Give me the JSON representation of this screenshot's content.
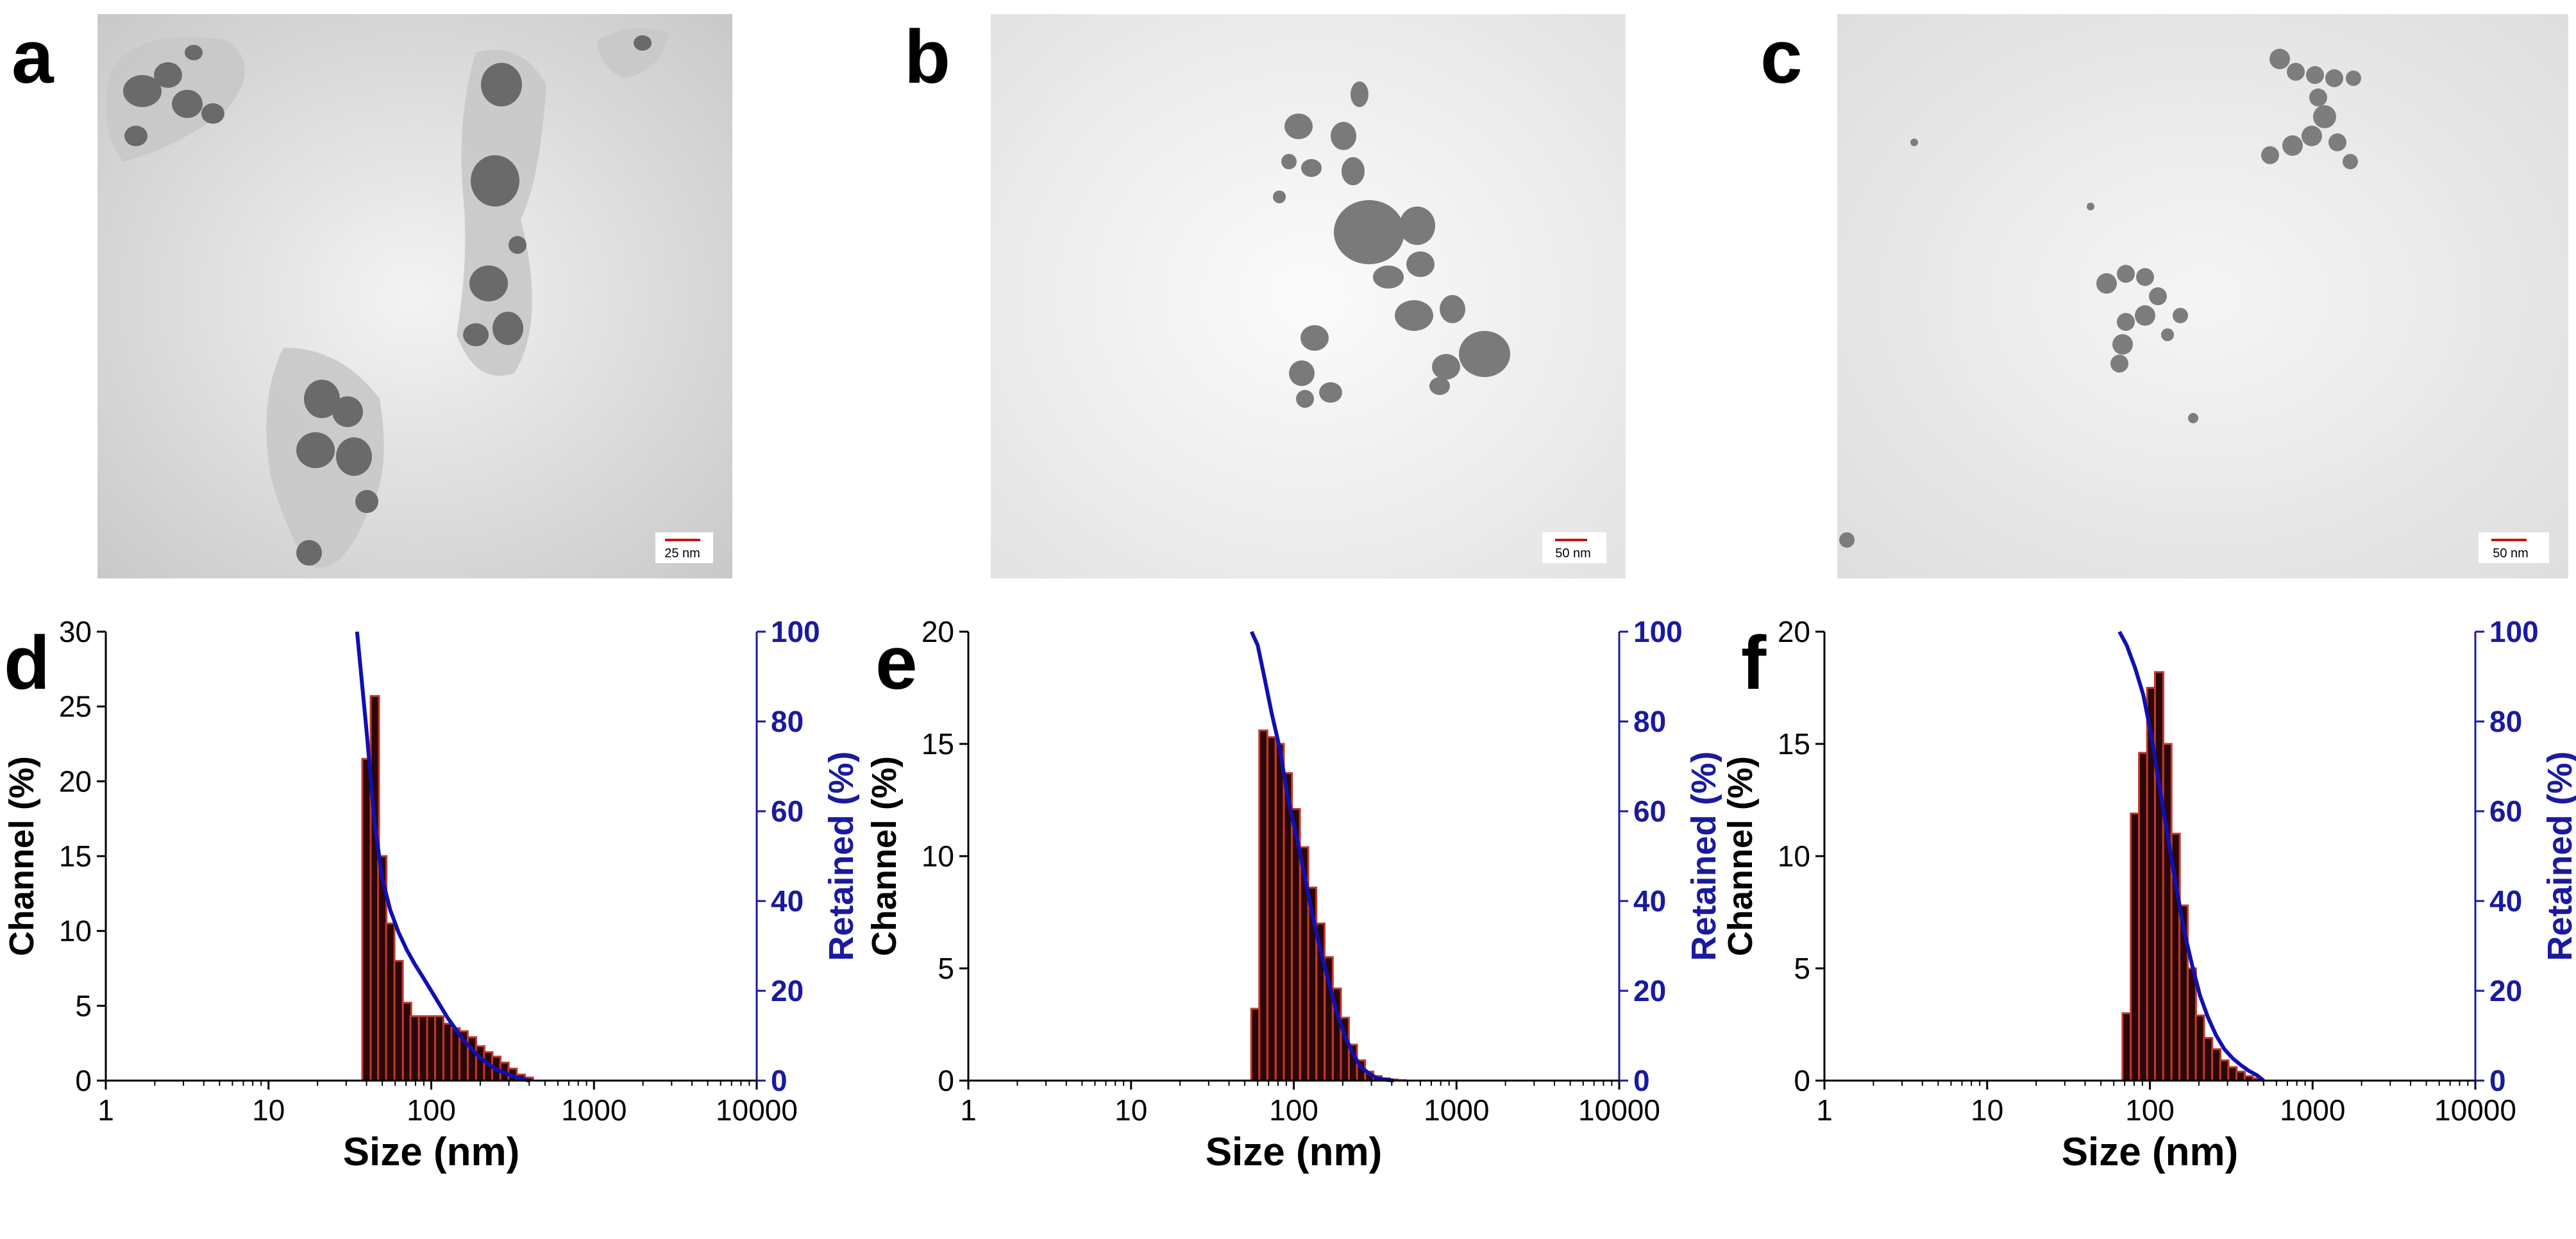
{
  "panels": {
    "a": {
      "letter": "a",
      "scale_bar": "25 nm"
    },
    "b": {
      "letter": "b",
      "scale_bar": "50 nm"
    },
    "c": {
      "letter": "c",
      "scale_bar": "50 nm"
    },
    "d": {
      "letter": "d"
    },
    "e": {
      "letter": "e"
    },
    "f": {
      "letter": "f"
    }
  },
  "colors": {
    "bar_fill": "#2a0606",
    "bar_edge": "#c0392b",
    "retained_line": "#1010b0",
    "right_axis": "#1a1aa0",
    "scale_bar": "#d01010"
  },
  "chart_data": [
    {
      "type": "bar",
      "panel": "d",
      "x_scale": "log",
      "xlabel": "Size (nm)",
      "ylabel": "Channel (%)",
      "y2label": "Retained (%)",
      "xlim": [
        1,
        10000
      ],
      "ylim": [
        0,
        30
      ],
      "y2lim": [
        0,
        100
      ],
      "x_ticks": [
        "1",
        "10",
        "100",
        "1000",
        "10000"
      ],
      "y_ticks": [
        "0",
        "5",
        "10",
        "15",
        "20",
        "25",
        "30"
      ],
      "y2_ticks": [
        "0",
        "20",
        "40",
        "60",
        "80",
        "100"
      ],
      "channel": {
        "x": [
          40,
          45,
          50,
          56,
          63,
          71,
          79,
          89,
          100,
          112,
          126,
          141,
          158,
          178,
          200,
          224,
          251,
          282,
          316,
          355,
          398
        ],
        "y": [
          21.5,
          25.7,
          15.0,
          10.5,
          8.0,
          5.2,
          4.3,
          4.3,
          4.3,
          4.3,
          3.8,
          3.5,
          3.3,
          2.9,
          2.3,
          1.9,
          1.6,
          1.2,
          0.8,
          0.4,
          0.2
        ]
      },
      "retained": {
        "x": [
          35,
          40,
          45,
          50,
          56,
          63,
          71,
          79,
          89,
          100,
          126,
          158,
          200,
          251,
          316,
          398
        ],
        "y": [
          100,
          78,
          57,
          45,
          38,
          33,
          29,
          26,
          23,
          20,
          14,
          9,
          5,
          2.5,
          1,
          0
        ]
      }
    },
    {
      "type": "bar",
      "panel": "e",
      "x_scale": "log",
      "xlabel": "Size (nm)",
      "ylabel": "Channel (%)",
      "y2label": "Retained (%)",
      "xlim": [
        1,
        10000
      ],
      "ylim": [
        0,
        20
      ],
      "y2lim": [
        0,
        100
      ],
      "x_ticks": [
        "1",
        "10",
        "100",
        "1000",
        "10000"
      ],
      "y_ticks": [
        "0",
        "5",
        "10",
        "15",
        "20"
      ],
      "y2_ticks": [
        "0",
        "20",
        "40",
        "60",
        "80",
        "100"
      ],
      "channel": {
        "x": [
          58,
          65,
          73,
          82,
          92,
          103,
          116,
          130,
          146,
          164,
          184,
          206,
          231,
          259,
          291,
          327,
          367,
          411,
          461
        ],
        "y": [
          3.2,
          15.6,
          15.3,
          15.0,
          13.7,
          12.1,
          10.4,
          8.6,
          7.0,
          5.5,
          4.1,
          2.8,
          1.6,
          0.9,
          0.4,
          0.2,
          0.1,
          0.05,
          0.02
        ]
      },
      "retained": {
        "x": [
          55,
          60,
          65,
          73,
          82,
          92,
          103,
          116,
          130,
          146,
          164,
          184,
          206,
          231,
          259,
          291,
          327,
          367,
          411
        ],
        "y": [
          100,
          97,
          91,
          82,
          74,
          63,
          55,
          46,
          37,
          29,
          22,
          15,
          10,
          6,
          3,
          1.5,
          0.5,
          0.2,
          0
        ]
      }
    },
    {
      "type": "bar",
      "panel": "f",
      "x_scale": "log",
      "xlabel": "Size (nm)",
      "ylabel": "Channel (%)",
      "y2label": "Retained (%)",
      "xlim": [
        1,
        10000
      ],
      "ylim": [
        0,
        20
      ],
      "y2lim": [
        0,
        100
      ],
      "x_ticks": [
        "1",
        "10",
        "100",
        "1000",
        "10000"
      ],
      "y_ticks": [
        "0",
        "5",
        "10",
        "15",
        "20"
      ],
      "y2_ticks": [
        "0",
        "20",
        "40",
        "60",
        "80",
        "100"
      ],
      "channel": {
        "x": [
          72,
          81,
          91,
          102,
          114,
          128,
          144,
          161,
          181,
          203,
          228,
          256,
          287,
          322,
          361,
          405,
          455
        ],
        "y": [
          3.0,
          11.9,
          14.6,
          17.5,
          18.2,
          15.0,
          11.0,
          7.8,
          5.0,
          2.9,
          1.9,
          1.4,
          0.9,
          0.6,
          0.4,
          0.2,
          0.1
        ]
      },
      "retained": {
        "x": [
          65,
          72,
          81,
          91,
          102,
          114,
          128,
          144,
          161,
          181,
          203,
          228,
          256,
          287,
          322,
          361,
          405,
          455,
          500
        ],
        "y": [
          100,
          97,
          92,
          86,
          77,
          66,
          55,
          44,
          34,
          26,
          19,
          14,
          10,
          7,
          5,
          3.5,
          2.2,
          1.2,
          0
        ]
      }
    }
  ]
}
